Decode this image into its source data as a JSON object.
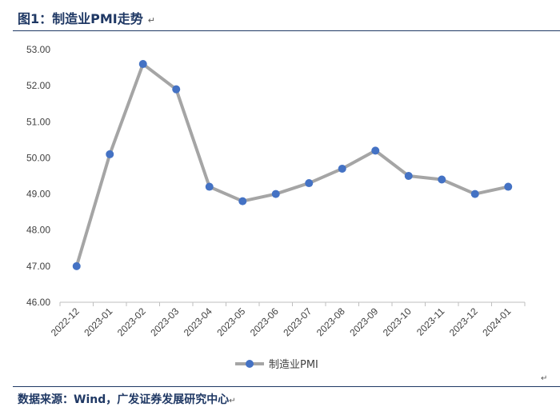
{
  "figure": {
    "title": "图1：制造业PMI走势",
    "source": "数据来源：Wind，广发证券发展研究中心",
    "paragraph_mark": "↵"
  },
  "chart_data": {
    "type": "line",
    "categories": [
      "2022-12",
      "2023-01",
      "2023-02",
      "2023-03",
      "2023-04",
      "2023-05",
      "2023-06",
      "2023-07",
      "2023-08",
      "2023-09",
      "2023-10",
      "2023-11",
      "2023-12",
      "2024-01"
    ],
    "series": [
      {
        "name": "制造业PMI",
        "values": [
          47.0,
          50.1,
          52.6,
          51.9,
          49.2,
          48.8,
          49.0,
          49.3,
          49.7,
          50.2,
          49.5,
          49.4,
          49.0,
          49.2
        ],
        "line_color": "#a5a5a5",
        "marker_color": "#4472c4"
      }
    ],
    "ylim": [
      46.0,
      53.0
    ],
    "yticks": [
      "46.00",
      "47.00",
      "48.00",
      "49.00",
      "50.00",
      "51.00",
      "52.00",
      "53.00"
    ],
    "xlabel": "",
    "ylabel": "",
    "grid": false,
    "legend": "bottom-center"
  }
}
